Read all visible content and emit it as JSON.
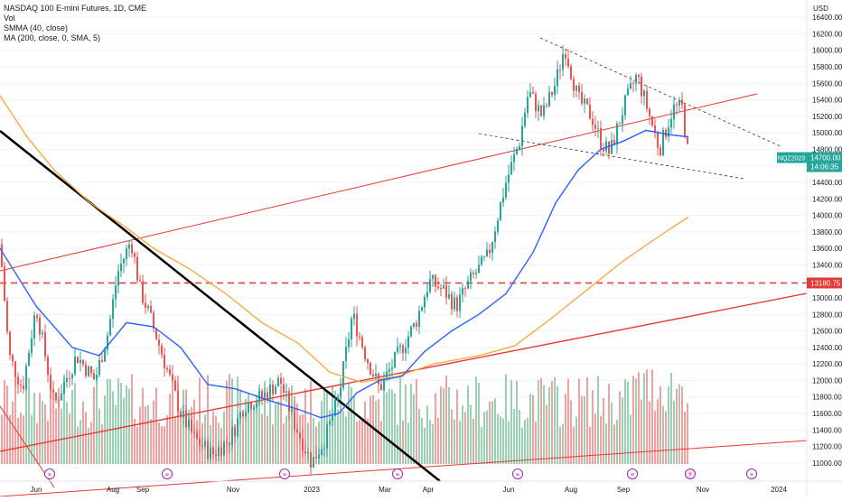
{
  "legend": {
    "title": "NASDAQ 100 E-mini Futures, 1D, CME",
    "vol": "Vol",
    "smma": "SMMA (40, close)",
    "ma": "MA (200, close, 0, SMA, 5)"
  },
  "colors": {
    "up": "#26a69a",
    "down": "#ef5350",
    "vol_up": "#7fc7a0",
    "vol_down": "#f08a88",
    "smma": "#2962ff",
    "ma": "#f7a63a",
    "trend_red": "#e53935",
    "trend_black": "#000000",
    "badge_green": "#26a69a",
    "badge_red": "#e53935",
    "event_purple": "#9c27b0"
  },
  "chart_data": {
    "type": "candlestick",
    "currency": "USD",
    "y_ticks": [
      11000,
      11200,
      11400,
      11600,
      11800,
      12000,
      12200,
      12400,
      12600,
      12800,
      13000,
      13200,
      13400,
      13600,
      13800,
      14000,
      14200,
      14400,
      14600,
      14800,
      15000,
      15200,
      15400,
      15600,
      15800,
      16000,
      16200,
      16400
    ],
    "ylim": [
      10900,
      16500
    ],
    "x_labels": [
      "Jun",
      "Aug",
      "Sep",
      "Nov",
      "2023",
      "Mar",
      "Apr",
      "Jun",
      "Aug",
      "Sep",
      "Nov",
      "2024"
    ],
    "symbol_badge": "NQZ2023",
    "last_price": "14700.00",
    "countdown": "14:06:35",
    "level_badge": "13180.75",
    "level": 13180.75,
    "events": {
      "earnings_count": 11,
      "upcoming_count": 2
    }
  }
}
